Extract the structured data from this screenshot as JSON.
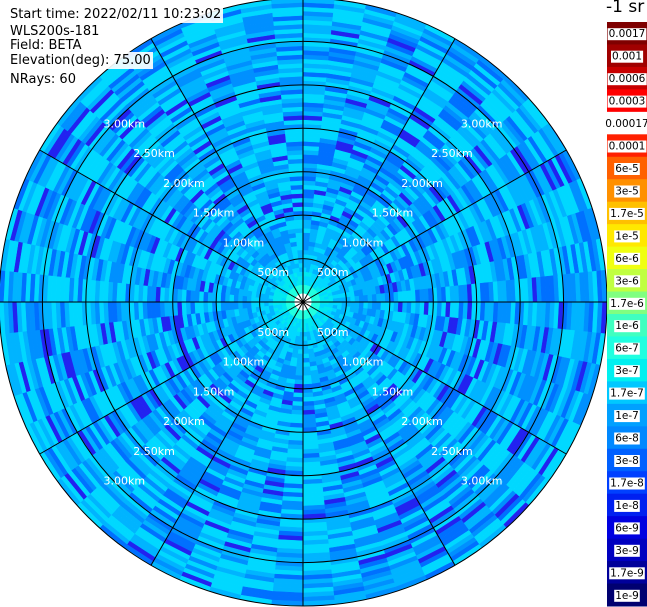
{
  "header": {
    "start_time": "Start time: 2022/02/11 10:23:02",
    "instrument": "WLS200s-181",
    "field": "Field: BETA",
    "elevation": "Elevation(deg): 75.00",
    "nrays": "NRays: 60"
  },
  "chart_data": {
    "type": "heatmap",
    "projection": "polar-ppi",
    "range_ring_labels": [
      "500m",
      "1.00km",
      "1.50km",
      "2.00km",
      "2.50km",
      "3.00km"
    ],
    "range_rings_km": [
      0.5,
      1.0,
      1.5,
      2.0,
      2.5,
      3.0,
      3.5
    ],
    "ray_count": 60,
    "max_range_km": 3.5,
    "colorbar": {
      "unit_label": "-1 sr",
      "ticks": [
        "0.0017",
        "0.001",
        "0.0006",
        "0.0003",
        "0.00017",
        "0.0001",
        "6e-5",
        "3e-5",
        "1.7e-5",
        "1e-5",
        "6e-6",
        "3e-6",
        "1.7e-6",
        "1e-6",
        "6e-7",
        "3e-7",
        "1.7e-7",
        "1e-7",
        "6e-8",
        "3e-8",
        "1.7e-8",
        "1e-8",
        "6e-9",
        "3e-9",
        "1.7e-9",
        "1e-9"
      ],
      "colors": [
        "#7f0000",
        "#a00000",
        "#c80000",
        "#ff0000",
        "#ffffff",
        "#ff2000",
        "#ff6000",
        "#ff9000",
        "#ffc000",
        "#ffe800",
        "#f0ff10",
        "#c0ff40",
        "#80ff80",
        "#40ffc0",
        "#20ffe0",
        "#00f0f0",
        "#00c8ff",
        "#00a0ff",
        "#0088ff",
        "#0060ff",
        "#0040ff",
        "#0020f0",
        "#0000e0",
        "#0000c0",
        "#00009a",
        "#000070"
      ]
    },
    "field_palette": [
      "#00d8ff",
      "#00b4ff",
      "#0090ff",
      "#0070ff",
      "#0050f8",
      "#2222f0",
      "#00e8f0",
      "#20ffe0"
    ]
  }
}
